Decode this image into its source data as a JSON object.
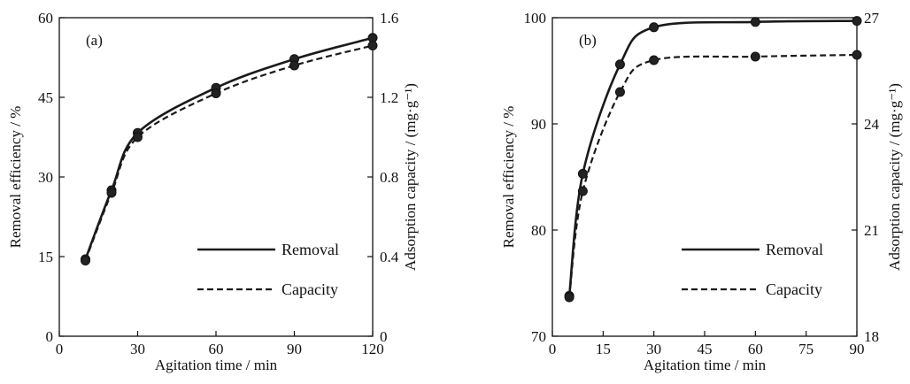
{
  "chart_data": [
    {
      "type": "line",
      "panel_label": "(a)",
      "xlabel": "Agitation time / min",
      "ylabel": "Removal efficiency / %",
      "y2label": "Adsorption capacity / (mg·g⁻¹)",
      "xlim": [
        0,
        120
      ],
      "ylim": [
        0,
        60
      ],
      "y2lim": [
        0,
        1.6
      ],
      "xticks": [
        "0",
        "30",
        "60",
        "90",
        "120"
      ],
      "yticks": [
        "0",
        "15",
        "30",
        "45",
        "60"
      ],
      "y2ticks": [
        "0",
        "0.4",
        "0.8",
        "1.2",
        "1.6"
      ],
      "legend_position": "bottom-right",
      "grid": false,
      "x": [
        10,
        20,
        30,
        60,
        90,
        120
      ],
      "series": [
        {
          "name": "Removal",
          "axis": "left",
          "style": "solid",
          "values": [
            14.5,
            27.5,
            38.3,
            46.8,
            52.2,
            56.2
          ]
        },
        {
          "name": "Capacity",
          "axis": "right",
          "style": "dashed",
          "values": [
            0.38,
            0.72,
            1.0,
            1.22,
            1.36,
            1.46
          ]
        }
      ]
    },
    {
      "type": "line",
      "panel_label": "(b)",
      "xlabel": "Agitation time / min",
      "ylabel": "Removal efficiency / %",
      "y2label": "Adsorption capacity / (mg·g⁻¹)",
      "xlim": [
        0,
        90
      ],
      "ylim": [
        70,
        100
      ],
      "y2lim": [
        18,
        27
      ],
      "xticks": [
        "0",
        "15",
        "30",
        "45",
        "60",
        "75",
        "90"
      ],
      "yticks": [
        "70",
        "80",
        "90",
        "100"
      ],
      "y2ticks": [
        "18",
        "21",
        "24",
        "27"
      ],
      "legend_position": "bottom-right",
      "grid": false,
      "x": [
        5,
        9,
        20,
        30,
        60,
        90
      ],
      "series": [
        {
          "name": "Removal",
          "axis": "left",
          "style": "solid",
          "values": [
            73.8,
            85.3,
            95.6,
            99.1,
            99.6,
            99.7
          ]
        },
        {
          "name": "Capacity",
          "axis": "right",
          "style": "dashed",
          "values": [
            19.1,
            22.1,
            24.9,
            25.8,
            25.9,
            25.95
          ]
        }
      ]
    }
  ]
}
